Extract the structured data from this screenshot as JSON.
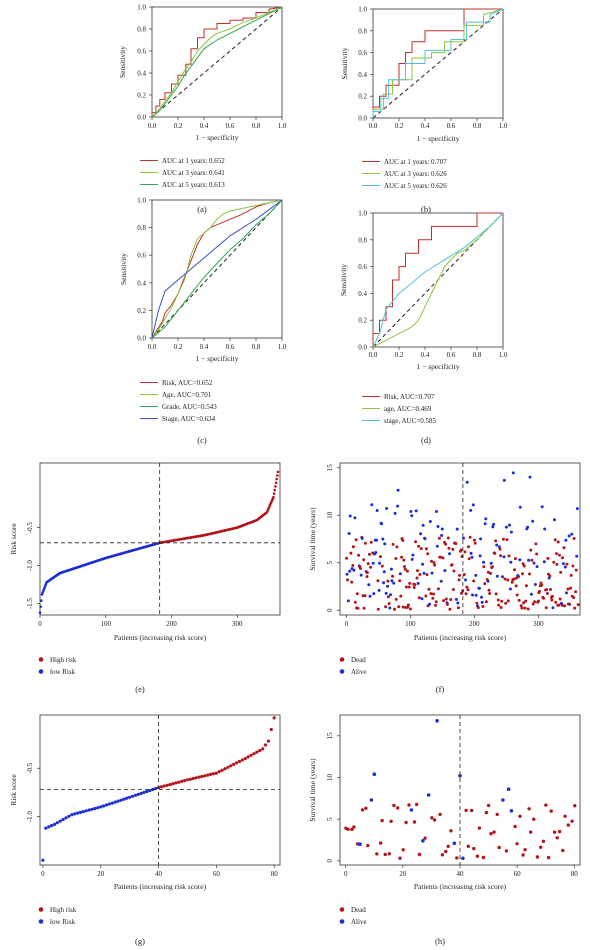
{
  "colors": {
    "red": "#c0302c",
    "lightgreen": "#8dc63f",
    "green": "#2fa84f",
    "cyan": "#4fc4d0",
    "blue": "#3a4fc4",
    "dotRed": "#b3161c",
    "dotBlue": "#1c2fd6"
  },
  "panels": [
    {
      "key": "a",
      "label": "(a)",
      "type": "roc",
      "xlabel": "1 − specificity",
      "ylabel": "Sensitivity",
      "xticks": [
        "0.0",
        "0.2",
        "0.4",
        "0.6",
        "0.8",
        "1.0"
      ],
      "yticks": [
        "0.0",
        "0.2",
        "0.4",
        "0.6",
        "0.8",
        "1.0"
      ],
      "legend": [
        {
          "text": "AUC at 1 years: 0.652",
          "color": "red"
        },
        {
          "text": "AUC at 3 years: 0.641",
          "color": "lightgreen"
        },
        {
          "text": "AUC at 5 years: 0.613",
          "color": "green"
        }
      ]
    },
    {
      "key": "b",
      "label": "(b)",
      "type": "roc",
      "xlabel": "1 − specificity",
      "ylabel": "Sensitivity",
      "xticks": [
        "0.0",
        "0.2",
        "0.4",
        "0.6",
        "0.8",
        "1.0"
      ],
      "yticks": [
        "0.0",
        "0.2",
        "0.4",
        "0.6",
        "0.8",
        "1.0"
      ],
      "legend": [
        {
          "text": "AUC at 1 years: 0.707",
          "color": "red"
        },
        {
          "text": "AUC at 3 years: 0.626",
          "color": "lightgreen"
        },
        {
          "text": "AUC at 5 years: 0.626",
          "color": "cyan"
        }
      ]
    },
    {
      "key": "c",
      "label": "(c)",
      "type": "roc",
      "xlabel": "1 − specificity",
      "ylabel": "Sensitivity",
      "xticks": [
        "0.0",
        "0.2",
        "0.4",
        "0.6",
        "0.8",
        "1.0"
      ],
      "yticks": [
        "0.0",
        "0.2",
        "0.4",
        "0.6",
        "0.8",
        "1.0"
      ],
      "legend": [
        {
          "text": "Risk, AUC=0.652",
          "color": "red"
        },
        {
          "text": "Age, AUC=0.701",
          "color": "lightgreen"
        },
        {
          "text": "Grade, AUC=0.543",
          "color": "green"
        },
        {
          "text": "Stage, AUC=0.634",
          "color": "blue"
        }
      ]
    },
    {
      "key": "d",
      "label": "(d)",
      "type": "roc",
      "xlabel": "1 − specificity",
      "ylabel": "Sensitivity",
      "xticks": [
        "0.0",
        "0.2",
        "0.4",
        "0.6",
        "0.8",
        "1.0"
      ],
      "yticks": [
        "0.0",
        "0.2",
        "0.4",
        "0.6",
        "0.8",
        "1.0"
      ],
      "legend": [
        {
          "text": "Risk, AUC=0.707",
          "color": "red"
        },
        {
          "text": "age, AUC=0.469",
          "color": "lightgreen"
        },
        {
          "text": "stage, AUC=0.585",
          "color": "cyan"
        }
      ]
    },
    {
      "key": "e",
      "label": "(e)",
      "type": "risk",
      "xlabel": "Patients (increasing risk score)",
      "ylabel": "Risk score",
      "xticks": [
        "0",
        "100",
        "200",
        "300"
      ],
      "yticks": [
        "-1.5",
        "-1.0",
        "-0.5"
      ],
      "legend": [
        {
          "text": "High risk",
          "color": "dotRed"
        },
        {
          "text": "low Risk",
          "color": "dotBlue"
        }
      ]
    },
    {
      "key": "f",
      "label": "(f)",
      "type": "surv",
      "xlabel": "Patients (increasing risk score)",
      "ylabel": "Survival time (years)",
      "xticks": [
        "0",
        "100",
        "200",
        "300"
      ],
      "yticks": [
        "0",
        "5",
        "10",
        "15"
      ],
      "legend": [
        {
          "text": "Dead",
          "color": "dotRed"
        },
        {
          "text": "Alive",
          "color": "dotBlue"
        }
      ]
    },
    {
      "key": "g",
      "label": "(g)",
      "type": "risk",
      "xlabel": "Patients (increasing risk score)",
      "ylabel": "Risk score",
      "xticks": [
        "0",
        "20",
        "40",
        "60",
        "80"
      ],
      "yticks": [
        "-1.0",
        "-0.5"
      ],
      "legend": [
        {
          "text": "High risk",
          "color": "dotRed"
        },
        {
          "text": "low Risk",
          "color": "dotBlue"
        }
      ]
    },
    {
      "key": "h",
      "label": "(h)",
      "type": "surv",
      "xlabel": "Patients (increasing risk score)",
      "ylabel": "Survival time (years)",
      "xticks": [
        "0",
        "20",
        "40",
        "60",
        "80"
      ],
      "yticks": [
        "0",
        "5",
        "10",
        "15"
      ],
      "legend": [
        {
          "text": "Dead",
          "color": "dotRed"
        },
        {
          "text": "Alive",
          "color": "dotBlue"
        }
      ]
    }
  ],
  "chart_data": [
    {
      "panel": "a",
      "type": "line",
      "xlim": [
        0,
        1
      ],
      "ylim": [
        0,
        1
      ],
      "reference_diagonal": true,
      "series": [
        {
          "name": "AUC at 1 years: 0.652",
          "color": "red",
          "x": [
            0,
            0,
            0.03,
            0.03,
            0.06,
            0.06,
            0.1,
            0.1,
            0.15,
            0.15,
            0.2,
            0.2,
            0.26,
            0.26,
            0.3,
            0.3,
            0.35,
            0.35,
            0.4,
            0.4,
            0.5,
            0.5,
            0.6,
            0.6,
            0.7,
            0.7,
            0.8,
            0.8,
            0.9,
            0.9,
            1
          ],
          "y": [
            0,
            0.04,
            0.04,
            0.1,
            0.1,
            0.16,
            0.16,
            0.22,
            0.22,
            0.3,
            0.3,
            0.38,
            0.38,
            0.48,
            0.48,
            0.62,
            0.62,
            0.72,
            0.72,
            0.8,
            0.8,
            0.85,
            0.85,
            0.88,
            0.88,
            0.9,
            0.9,
            0.95,
            0.95,
            0.98,
            1
          ]
        },
        {
          "name": "AUC at 3 years: 0.641",
          "color": "lightgreen",
          "x": [
            0,
            0.05,
            0.1,
            0.15,
            0.2,
            0.25,
            0.3,
            0.35,
            0.4,
            0.45,
            0.5,
            0.6,
            0.7,
            0.8,
            0.9,
            1
          ],
          "y": [
            0,
            0.06,
            0.14,
            0.22,
            0.32,
            0.42,
            0.5,
            0.6,
            0.66,
            0.72,
            0.76,
            0.8,
            0.86,
            0.9,
            0.95,
            1
          ]
        },
        {
          "name": "AUC at 5 years: 0.613",
          "color": "green",
          "x": [
            0,
            0.05,
            0.1,
            0.15,
            0.2,
            0.25,
            0.3,
            0.35,
            0.4,
            0.5,
            0.6,
            0.7,
            0.8,
            0.9,
            1
          ],
          "y": [
            0,
            0.05,
            0.12,
            0.2,
            0.28,
            0.38,
            0.46,
            0.54,
            0.62,
            0.7,
            0.76,
            0.82,
            0.88,
            0.94,
            1
          ]
        }
      ]
    },
    {
      "panel": "b",
      "type": "line",
      "xlim": [
        0,
        1
      ],
      "ylim": [
        0,
        1
      ],
      "reference_diagonal": true,
      "series": [
        {
          "name": "AUC at 1 years: 0.707",
          "color": "red",
          "x": [
            0,
            0,
            0.05,
            0.05,
            0.1,
            0.1,
            0.2,
            0.2,
            0.25,
            0.25,
            0.3,
            0.3,
            0.4,
            0.4,
            0.7,
            0.7,
            0.8,
            0.8,
            1
          ],
          "y": [
            0,
            0.1,
            0.1,
            0.2,
            0.2,
            0.3,
            0.3,
            0.5,
            0.5,
            0.6,
            0.6,
            0.7,
            0.7,
            0.8,
            0.8,
            1,
            1,
            1,
            1
          ]
        },
        {
          "name": "AUC at 3 years: 0.626",
          "color": "lightgreen",
          "x": [
            0,
            0,
            0.08,
            0.08,
            0.15,
            0.15,
            0.3,
            0.3,
            0.45,
            0.45,
            0.55,
            0.55,
            0.7,
            0.7,
            0.85,
            0.85,
            1
          ],
          "y": [
            0,
            0.08,
            0.08,
            0.22,
            0.22,
            0.35,
            0.35,
            0.55,
            0.55,
            0.6,
            0.6,
            0.7,
            0.7,
            0.85,
            0.85,
            0.95,
            1
          ]
        },
        {
          "name": "AUC at 5 years: 0.626",
          "color": "cyan",
          "x": [
            0,
            0,
            0.06,
            0.06,
            0.12,
            0.12,
            0.25,
            0.25,
            0.4,
            0.4,
            0.6,
            0.6,
            0.72,
            0.72,
            0.9,
            0.9,
            1
          ],
          "y": [
            0,
            0.06,
            0.06,
            0.18,
            0.18,
            0.35,
            0.35,
            0.5,
            0.5,
            0.62,
            0.62,
            0.72,
            0.72,
            0.88,
            0.88,
            0.95,
            1
          ]
        }
      ]
    },
    {
      "panel": "c",
      "type": "line",
      "xlim": [
        0,
        1
      ],
      "ylim": [
        0,
        1
      ],
      "reference_diagonal": true,
      "series": [
        {
          "name": "Risk, AUC=0.652",
          "color": "red",
          "x": [
            0,
            0.04,
            0.08,
            0.1,
            0.15,
            0.2,
            0.25,
            0.3,
            0.35,
            0.4,
            0.45,
            0.5,
            0.6,
            0.7,
            0.8,
            0.9,
            1
          ],
          "y": [
            0,
            0.06,
            0.12,
            0.18,
            0.24,
            0.32,
            0.44,
            0.56,
            0.68,
            0.76,
            0.8,
            0.82,
            0.86,
            0.9,
            0.95,
            0.98,
            1
          ]
        },
        {
          "name": "Age, AUC=0.701",
          "color": "lightgreen",
          "x": [
            0,
            0.05,
            0.1,
            0.15,
            0.2,
            0.25,
            0.3,
            0.35,
            0.4,
            0.45,
            0.5,
            0.55,
            0.6,
            0.7,
            0.8,
            0.9,
            1
          ],
          "y": [
            0,
            0.06,
            0.14,
            0.22,
            0.32,
            0.42,
            0.6,
            0.72,
            0.76,
            0.8,
            0.86,
            0.9,
            0.92,
            0.94,
            0.96,
            0.98,
            1
          ]
        },
        {
          "name": "Grade, AUC=0.543",
          "color": "green",
          "x": [
            0,
            0.1,
            0.2,
            0.3,
            0.4,
            0.5,
            0.6,
            0.7,
            0.8,
            0.9,
            1
          ],
          "y": [
            0,
            0.08,
            0.2,
            0.32,
            0.44,
            0.54,
            0.64,
            0.72,
            0.82,
            0.9,
            1
          ]
        },
        {
          "name": "Stage, AUC=0.634",
          "color": "blue",
          "x": [
            0,
            0.05,
            0.1,
            0.2,
            0.3,
            0.4,
            0.5,
            0.6,
            0.7,
            0.8,
            0.9,
            1
          ],
          "y": [
            0,
            0.2,
            0.34,
            0.42,
            0.5,
            0.58,
            0.66,
            0.74,
            0.8,
            0.86,
            0.93,
            1
          ]
        }
      ]
    },
    {
      "panel": "d",
      "type": "line",
      "xlim": [
        0,
        1
      ],
      "ylim": [
        0,
        1
      ],
      "reference_diagonal": true,
      "series": [
        {
          "name": "Risk, AUC=0.707",
          "color": "red",
          "x": [
            0,
            0,
            0.05,
            0.05,
            0.1,
            0.1,
            0.15,
            0.15,
            0.2,
            0.2,
            0.25,
            0.25,
            0.35,
            0.35,
            0.45,
            0.45,
            0.6,
            0.6,
            0.7,
            0.7,
            0.8,
            0.8,
            1
          ],
          "y": [
            0,
            0.1,
            0.1,
            0.2,
            0.2,
            0.3,
            0.3,
            0.5,
            0.5,
            0.6,
            0.6,
            0.7,
            0.7,
            0.8,
            0.8,
            0.9,
            0.9,
            0.9,
            0.9,
            0.9,
            0.9,
            1,
            1
          ]
        },
        {
          "name": "age, AUC=0.469",
          "color": "lightgreen",
          "x": [
            0,
            0.1,
            0.2,
            0.3,
            0.35,
            0.4,
            0.45,
            0.5,
            0.55,
            0.6,
            0.65,
            0.7,
            0.8,
            0.9,
            1
          ],
          "y": [
            0,
            0.05,
            0.1,
            0.15,
            0.2,
            0.3,
            0.4,
            0.5,
            0.6,
            0.65,
            0.7,
            0.72,
            0.8,
            0.9,
            1
          ]
        },
        {
          "name": "stage, AUC=0.585",
          "color": "cyan",
          "x": [
            0,
            0.05,
            0.1,
            0.2,
            0.3,
            0.4,
            0.5,
            0.6,
            0.7,
            0.8,
            0.9,
            1
          ],
          "y": [
            0,
            0.1,
            0.28,
            0.4,
            0.48,
            0.56,
            0.62,
            0.68,
            0.74,
            0.82,
            0.9,
            1
          ]
        }
      ]
    },
    {
      "panel": "e",
      "type": "scatter",
      "xlim": [
        0,
        365
      ],
      "ylim": [
        -1.65,
        0.35
      ],
      "cutoff_x": 182,
      "cutoff_y": -0.7,
      "n": 363,
      "curve_knots": {
        "x": [
          0,
          3,
          10,
          30,
          100,
          182,
          250,
          300,
          330,
          345,
          355,
          363
        ],
        "y": [
          -1.62,
          -1.38,
          -1.22,
          -1.1,
          -0.9,
          -0.7,
          -0.6,
          -0.5,
          -0.4,
          -0.3,
          -0.1,
          0.28
        ]
      },
      "series": [
        {
          "name": "High risk",
          "color": "dotRed",
          "x_range": [
            182,
            363
          ]
        },
        {
          "name": "low Risk",
          "color": "dotBlue",
          "x_range": [
            0,
            181
          ]
        }
      ]
    },
    {
      "panel": "f",
      "type": "scatter",
      "xlim": [
        -10,
        365
      ],
      "ylim": [
        -0.5,
        15.5
      ],
      "cutoff_x": 182,
      "n": 363,
      "series": [
        {
          "name": "Dead",
          "color": "dotRed",
          "pattern": "mostly 0–8 years, spread across all patients"
        },
        {
          "name": "Alive",
          "color": "dotBlue",
          "pattern": "0–15 years, more frequent at higher survival times"
        }
      ]
    },
    {
      "panel": "g",
      "type": "scatter",
      "xlim": [
        -1,
        82
      ],
      "ylim": [
        -1.5,
        0.05
      ],
      "cutoff_x": 40,
      "cutoff_y": -0.72,
      "n": 81,
      "curve_knots": {
        "x": [
          0,
          1,
          4,
          10,
          20,
          30,
          40,
          50,
          60,
          70,
          76,
          78,
          80
        ],
        "y": [
          -1.45,
          -1.12,
          -1.08,
          -0.98,
          -0.9,
          -0.8,
          -0.7,
          -0.62,
          -0.55,
          -0.4,
          -0.3,
          -0.22,
          0.02
        ]
      },
      "series": [
        {
          "name": "High risk",
          "color": "dotRed",
          "x_range": [
            40,
            80
          ]
        },
        {
          "name": "low Risk",
          "color": "dotBlue",
          "x_range": [
            0,
            39
          ]
        }
      ]
    },
    {
      "panel": "h",
      "type": "scatter",
      "xlim": [
        -2,
        82
      ],
      "ylim": [
        -0.5,
        17.5
      ],
      "cutoff_x": 40,
      "n": 81,
      "points_alive": [
        [
          5,
          2.0
        ],
        [
          9,
          7.3
        ],
        [
          10,
          10.4
        ],
        [
          23,
          6.1
        ],
        [
          27,
          2.4
        ],
        [
          29,
          7.9
        ],
        [
          32,
          16.8
        ],
        [
          38,
          2.1
        ],
        [
          40,
          10.2
        ],
        [
          41,
          0.3
        ],
        [
          55,
          7.3
        ],
        [
          57,
          8.6
        ],
        [
          58,
          6.0
        ]
      ],
      "series": [
        {
          "name": "Dead",
          "color": "dotRed",
          "pattern": "mostly 0–7 years"
        },
        {
          "name": "Alive",
          "color": "dotBlue",
          "pattern": "sparse, 0–17 years"
        }
      ]
    }
  ]
}
